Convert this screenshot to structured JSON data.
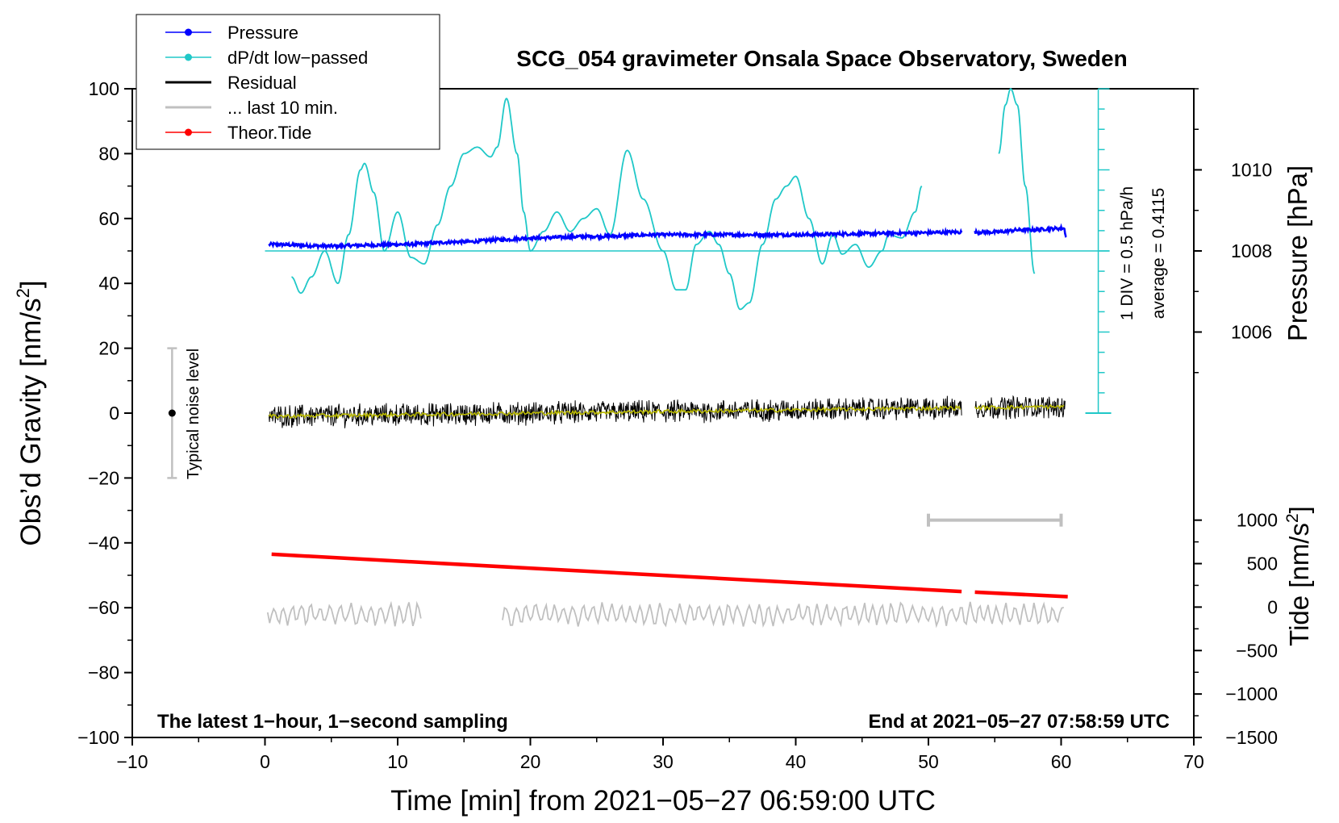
{
  "chart_data": {
    "type": "line",
    "title": "SCG_054 gravimeter Onsala Space Observatory, Sweden",
    "xlabel": "Time [min] from 2021−05−27 06:59:00 UTC",
    "ylabel_left": "Obs’d Gravity [nm/s",
    "ylabel_left_sup": "2",
    "ylabel_left_tail": "]",
    "ylabel_pressure": "Pressure [hPa]",
    "ylabel_tide": "Tide [nm/s",
    "ylabel_tide_sup": "2",
    "ylabel_tide_tail": "]",
    "xlim": [
      -10,
      70
    ],
    "ylim": [
      -100,
      100
    ],
    "x_ticks": [
      -10,
      0,
      10,
      20,
      30,
      40,
      50,
      60,
      70
    ],
    "x_tick_labels": [
      "−10",
      "0",
      "10",
      "20",
      "30",
      "40",
      "50",
      "60",
      "70"
    ],
    "y_ticks": [
      100,
      80,
      60,
      40,
      20,
      0,
      -20,
      -40,
      -60,
      -80,
      -100
    ],
    "y_tick_labels": [
      "100",
      "80",
      "60",
      "40",
      "20",
      "0",
      "−20",
      "−40",
      "−60",
      "−80",
      "−100"
    ],
    "pressure_axis": {
      "ticks": [
        1010,
        1008,
        1006
      ],
      "tick_labels": [
        "1010",
        "1008",
        "1006"
      ],
      "gravity_equivalent": [
        75,
        50,
        25
      ]
    },
    "tide_axis": {
      "ticks": [
        1000,
        500,
        0,
        -500,
        -1000,
        -1500
      ],
      "tick_labels": [
        "1000",
        "500",
        "0",
        "−500",
        "−1000",
        "−1500"
      ],
      "range": [
        -1500,
        1000
      ],
      "gravity_range": [
        -100,
        -33
      ]
    },
    "dpdt_scale": {
      "label_div": "1 DIV = 0.5 hPa/h",
      "label_avg": "average = 0.4115",
      "x": 62.8,
      "y_range": [
        0,
        100
      ],
      "zero_level": 50
    },
    "legend": {
      "position": "top-left",
      "entries": [
        {
          "label": "Pressure",
          "color": "#0000ff",
          "marker": true
        },
        {
          "label": "dP/dt low−passed",
          "color": "#20c8c8",
          "marker": true
        },
        {
          "label": "Residual",
          "color": "#000000",
          "marker": false
        },
        {
          "label": "... last 10 min.",
          "color": "#c0c0c0",
          "marker": false
        },
        {
          "label": "Theor.Tide",
          "color": "#ff0000",
          "marker": true
        }
      ]
    },
    "noise_bar": {
      "label": "Typical noise level",
      "x": -7,
      "y_center": 0,
      "half_range": 20
    },
    "last10_bar": {
      "x_start": 50,
      "x_end": 60,
      "y": -33
    },
    "footer_left": "The latest 1−hour, 1−second sampling",
    "footer_right": "End at 2021−05−27 07:58:59 UTC",
    "series": [
      {
        "name": "Pressure",
        "color": "#0000ff",
        "segments": [
          {
            "x": [
              0.3,
              5,
              8,
              10,
              15,
              18,
              20,
              25,
              30,
              35,
              40,
              45,
              48,
              52.5
            ],
            "y": [
              52,
              51.5,
              51.8,
              52,
              52.8,
              53.5,
              54,
              54.5,
              55,
              55,
              55,
              55.3,
              55.5,
              55.8
            ]
          },
          {
            "x": [
              53.5,
              55,
              57,
              58,
              59,
              60.2,
              60.4
            ],
            "y": [
              55.8,
              55.8,
              56.5,
              56.5,
              56.8,
              57,
              54.5
            ]
          }
        ]
      },
      {
        "name": "dP/dt low-passed",
        "color": "#20c8c8",
        "segments": [
          {
            "x": [
              2,
              2.7,
              3.5,
              4.5,
              5.5,
              6.3,
              7.2,
              7.5,
              8.2,
              9,
              10,
              11,
              12,
              13,
              14,
              15,
              16,
              17,
              17.5,
              18.2,
              19,
              19.5,
              20,
              21,
              22,
              23,
              24,
              25,
              26,
              27.3,
              28.5,
              30,
              31,
              31.7,
              32.5,
              33.5,
              34.2,
              35,
              35.8,
              36.5,
              37.5,
              38.5,
              39.3,
              40,
              41,
              42,
              42.8,
              43.5,
              44.5,
              45.5,
              46.5,
              47,
              48,
              49,
              49.5
            ],
            "y": [
              42,
              37,
              42,
              50,
              40,
              55,
              75,
              77,
              68,
              50,
              62,
              48,
              46,
              58,
              70,
              80,
              82,
              79,
              82,
              97,
              80,
              62,
              50,
              56,
              62,
              56,
              60,
              63,
              55,
              81,
              66,
              50,
              38,
              38,
              52,
              56,
              52,
              43,
              32,
              34,
              52,
              66,
              70,
              73,
              60,
              46,
              55,
              49,
              52,
              45,
              50,
              55,
              54,
              62,
              70
            ]
          },
          {
            "x": [
              55.3,
              55.8,
              56.2,
              56.7,
              57.3,
              58
            ],
            "y": [
              80,
              95,
              100,
              95,
              70,
              43
            ]
          }
        ]
      },
      {
        "name": "Residual",
        "color": "#000000",
        "x_range": [
          0.3,
          60.3
        ],
        "gaps": [
          [
            52.5,
            53.5
          ]
        ],
        "level_start": -1,
        "level_end": 2,
        "noise_amplitude": 3
      },
      {
        "name": "Residual smoothed",
        "color": "#b8b800",
        "x_range": [
          0.3,
          60.3
        ],
        "gaps": [
          [
            52.5,
            53.5
          ]
        ],
        "level_start": -1,
        "level_end": 2
      },
      {
        "name": "Theor.Tide",
        "color": "#ff0000",
        "segments": [
          {
            "x": [
              0.5,
              52.5
            ],
            "y": [
              -43.5,
              -55
            ]
          },
          {
            "x": [
              53.5,
              60.5
            ],
            "y": [
              -55.2,
              -56.6
            ]
          }
        ]
      },
      {
        "name": "... last 10 min.",
        "color": "#c0c0c0",
        "x_range_segments": [
          [
            0.2,
            11.8
          ],
          [
            17.9,
            60.2
          ]
        ],
        "level": -62,
        "noise_amplitude": 3
      }
    ]
  }
}
